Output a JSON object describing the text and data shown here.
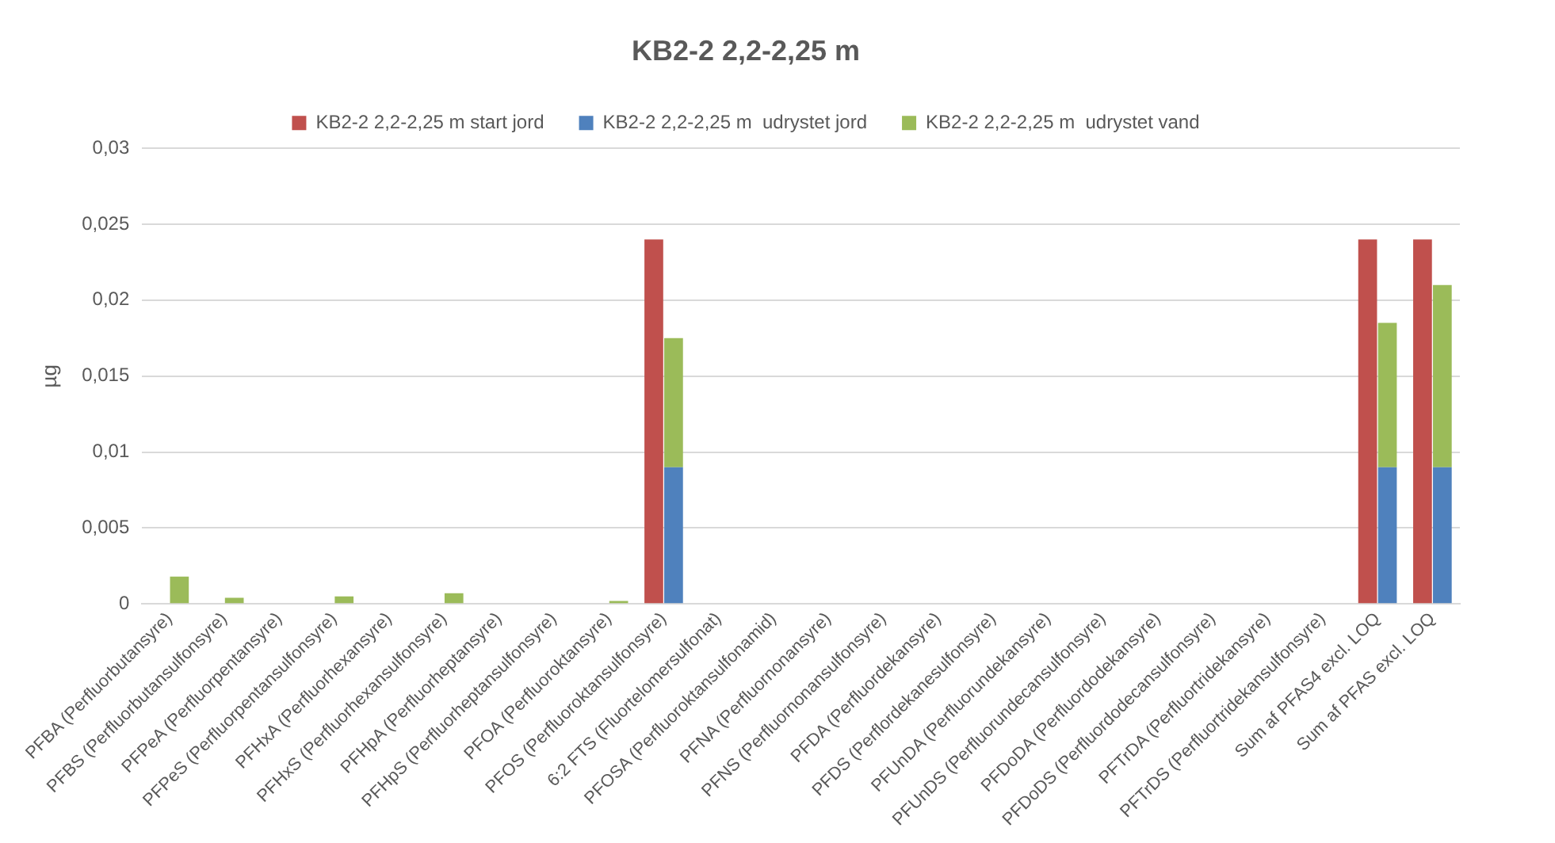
{
  "chart_data": {
    "type": "bar",
    "title": "KB2-2 2,2-2,25 m",
    "ylabel": "µg",
    "categories": [
      "PFBA (Perfluorbutansyre)",
      "PFBS (Perfluorbutansulfonsyre)",
      "PFPeA (Perfluorpentansyre)",
      "PFPeS (Perfluorpentansulfonsyre)",
      "PFHxA (Perfluorhexansyre)",
      "PFHxS (Perfluorhexansulfonsyre)",
      "PFHpA (Perfluorheptansyre)",
      "PFHpS (Perfluorheptansulfonsyre)",
      "PFOA (Perfluoroktansyre)",
      "PFOS (Perfluoroktansulfonsyre)",
      "6:2 FTS (Fluortelomersulfonat)",
      "PFOSA (Perfluoroktansulfonamid)",
      "PFNA (Perfluornonansyre)",
      "PFNS (Perfluornonansulfonsyre)",
      "PFDA (Perfluordekansyre)",
      "PFDS (Perflordekanesulfonsyre)",
      "PFUnDA (Perfluorundekansyre)",
      "PFUnDS (Perfluorundecansulfonsyre)",
      "PFDoDA (Perfluordodekansyre)",
      "PFDoDS (Perfluordodecansulfonsyre)",
      "PFTrDA (Perfluortridekansyre)",
      "PFTrDS (Perfluortridekansulfonsyre)",
      "Sum af PFAS4 excl. LOQ",
      "Sum af PFAS excl. LOQ"
    ],
    "series": [
      {
        "name": "KB2-2 2,2-2,25 m start jord",
        "color": "#c0504d",
        "values": [
          0,
          0,
          0,
          0,
          0,
          0,
          0,
          0,
          0,
          0.024,
          0,
          0,
          0,
          0,
          0,
          0,
          0,
          0,
          0,
          0,
          0,
          0,
          0.024,
          0.024
        ]
      },
      {
        "name": "KB2-2 2,2-2,25 m  udrystet jord",
        "color": "#4f81bd",
        "values": [
          0,
          0,
          0,
          0,
          0,
          0,
          0,
          0,
          0,
          0.009,
          0,
          0,
          0,
          0,
          0,
          0,
          0,
          0,
          0,
          0,
          0,
          0,
          0.009,
          0.009
        ]
      },
      {
        "name": "KB2-2 2,2-2,25 m  udrystet vand",
        "color": "#9bbb59",
        "values": [
          0.0018,
          0.0004,
          0,
          0.0005,
          0,
          0.0007,
          0,
          0,
          0.0002,
          0.0085,
          0,
          0,
          0,
          0,
          0,
          0,
          0,
          0,
          0,
          0,
          0,
          0,
          0.0095,
          0.012
        ],
        "base": [
          0,
          0,
          null,
          0,
          null,
          0,
          null,
          null,
          0,
          0.009,
          null,
          null,
          null,
          null,
          null,
          null,
          null,
          null,
          null,
          null,
          null,
          null,
          0.009,
          0.009
        ]
      }
    ],
    "ylim": [
      0,
      0.03
    ],
    "yticks": [
      {
        "value": 0,
        "label": "0"
      },
      {
        "value": 0.005,
        "label": "0,005"
      },
      {
        "value": 0.01,
        "label": "0,01"
      },
      {
        "value": 0.015,
        "label": "0,015"
      },
      {
        "value": 0.02,
        "label": "0,02"
      },
      {
        "value": 0.025,
        "label": "0,025"
      },
      {
        "value": 0.03,
        "label": "0,03"
      }
    ],
    "grid": "y",
    "legend": "top"
  }
}
